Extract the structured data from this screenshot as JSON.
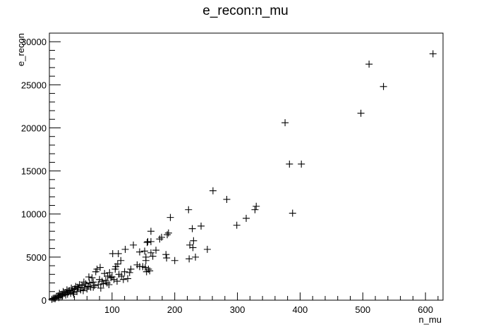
{
  "chart_data": {
    "type": "scatter",
    "title": "e_recon:n_mu",
    "xlabel": "n_mu",
    "ylabel": "e_recon",
    "xlim": [
      0,
      628
    ],
    "ylim": [
      0,
      31000
    ],
    "x_ticks": [
      100,
      200,
      300,
      400,
      500,
      600
    ],
    "y_ticks": [
      0,
      5000,
      10000,
      15000,
      20000,
      25000,
      30000
    ],
    "x_tick_labels": [
      "100",
      "200",
      "300",
      "400",
      "500",
      "600"
    ],
    "y_tick_labels": [
      "0",
      "5000",
      "10000",
      "15000",
      "20000",
      "25000",
      "30000"
    ],
    "marker": "plus",
    "grid": false,
    "points": [
      [
        612,
        28600
      ],
      [
        510,
        27400
      ],
      [
        533,
        24800
      ],
      [
        497,
        21700
      ],
      [
        376,
        20600
      ],
      [
        383,
        15800
      ],
      [
        402,
        15800
      ],
      [
        388,
        10100
      ],
      [
        261,
        12700
      ],
      [
        283,
        11700
      ],
      [
        222,
        10500
      ],
      [
        330,
        10900
      ],
      [
        328,
        10500
      ],
      [
        314,
        9500
      ],
      [
        299,
        8700
      ],
      [
        242,
        8600
      ],
      [
        228,
        8300
      ],
      [
        193,
        9600
      ],
      [
        162,
        8000
      ],
      [
        190,
        7800
      ],
      [
        188,
        7600
      ],
      [
        230,
        6900
      ],
      [
        224,
        6400
      ],
      [
        252,
        5900
      ],
      [
        229,
        6100
      ],
      [
        233,
        5000
      ],
      [
        223,
        4800
      ],
      [
        200,
        4600
      ],
      [
        187,
        4900
      ],
      [
        179,
        7300
      ],
      [
        176,
        7100
      ],
      [
        157,
        6800
      ],
      [
        162,
        6800
      ],
      [
        156,
        6700
      ],
      [
        134,
        6400
      ],
      [
        121,
        5900
      ],
      [
        144,
        5600
      ],
      [
        170,
        5800
      ],
      [
        162,
        5500
      ],
      [
        152,
        5700
      ],
      [
        186,
        5300
      ],
      [
        165,
        5100
      ],
      [
        154,
        5000
      ],
      [
        154,
        4600
      ],
      [
        140,
        4100
      ],
      [
        144,
        3900
      ],
      [
        149,
        3900
      ],
      [
        153,
        3800
      ],
      [
        158,
        3600
      ],
      [
        160,
        3400
      ],
      [
        155,
        3300
      ],
      [
        130,
        3600
      ],
      [
        120,
        3300
      ],
      [
        110,
        5400
      ],
      [
        101,
        5400
      ],
      [
        114,
        4600
      ],
      [
        109,
        4200
      ],
      [
        106,
        3900
      ],
      [
        105,
        3600
      ],
      [
        128,
        3200
      ],
      [
        125,
        2500
      ],
      [
        111,
        3000
      ],
      [
        96,
        3200
      ],
      [
        88,
        3100
      ],
      [
        81,
        3800
      ],
      [
        76,
        3600
      ],
      [
        74,
        3300
      ],
      [
        93,
        2800
      ],
      [
        98,
        2600
      ],
      [
        103,
        2400
      ],
      [
        90,
        2300
      ],
      [
        84,
        2200
      ],
      [
        80,
        2400
      ],
      [
        70,
        2100
      ],
      [
        64,
        2000
      ],
      [
        63,
        2700
      ],
      [
        68,
        2600
      ],
      [
        58,
        1900
      ],
      [
        55,
        2100
      ],
      [
        52,
        1700
      ],
      [
        48,
        1800
      ],
      [
        45,
        1500
      ],
      [
        42,
        1600
      ],
      [
        40,
        1300
      ],
      [
        37,
        1200
      ],
      [
        35,
        1400
      ],
      [
        32,
        1100
      ],
      [
        30,
        1000
      ],
      [
        28,
        1200
      ],
      [
        26,
        900
      ],
      [
        24,
        800
      ],
      [
        22,
        1000
      ],
      [
        20,
        700
      ],
      [
        18,
        600
      ],
      [
        16,
        800
      ],
      [
        14,
        500
      ],
      [
        12,
        400
      ],
      [
        10,
        300
      ],
      [
        8,
        250
      ],
      [
        6,
        200
      ],
      [
        4,
        100
      ],
      [
        60,
        1300
      ],
      [
        66,
        1500
      ],
      [
        72,
        1700
      ],
      [
        78,
        1800
      ],
      [
        86,
        1900
      ],
      [
        92,
        2000
      ],
      [
        50,
        1200
      ],
      [
        44,
        1000
      ],
      [
        38,
        900
      ],
      [
        34,
        800
      ],
      [
        56,
        1500
      ],
      [
        62,
        1600
      ],
      [
        100,
        2700
      ],
      [
        115,
        2800
      ],
      [
        118,
        2400
      ],
      [
        108,
        2200
      ],
      [
        95,
        1800
      ],
      [
        26,
        600
      ],
      [
        21,
        500
      ],
      [
        17,
        400
      ],
      [
        46,
        1400
      ],
      [
        54,
        1100
      ],
      [
        70,
        1500
      ],
      [
        82,
        1400
      ],
      [
        39,
        700
      ],
      [
        29,
        700
      ],
      [
        15,
        300
      ],
      [
        9,
        150
      ]
    ]
  }
}
